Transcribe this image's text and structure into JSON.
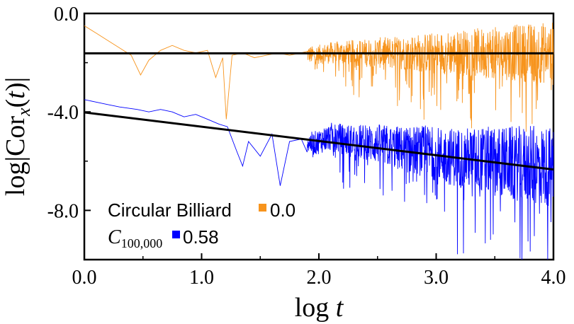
{
  "chart_data": {
    "type": "line",
    "xlabel": "log t",
    "ylabel": "log|Cor_x(t)|",
    "xlim": [
      0.0,
      4.0
    ],
    "ylim": [
      -10.0,
      0.0
    ],
    "x_ticks": [
      "0.0",
      "1.0",
      "2.0",
      "3.0",
      "4.0"
    ],
    "y_ticks": [
      "0.0",
      "-4.0",
      "-8.0"
    ],
    "legend": {
      "placement": "bottom-left",
      "entries": [
        {
          "label": "Circular Billiard",
          "value": "0.0",
          "color": "#f7941d"
        },
        {
          "label_main": "C",
          "label_sub": "100,000",
          "value": "0.58",
          "color": "#0000ff"
        }
      ]
    },
    "series": [
      {
        "name": "Circular Billiard",
        "color": "#f7941d",
        "points": [
          [
            0.0,
            -0.5
          ],
          [
            0.1,
            -0.8
          ],
          [
            0.2,
            -1.1
          ],
          [
            0.3,
            -1.4
          ],
          [
            0.4,
            -1.7
          ],
          [
            0.48,
            -2.5
          ],
          [
            0.55,
            -1.9
          ],
          [
            0.65,
            -1.5
          ],
          [
            0.75,
            -1.3
          ],
          [
            0.85,
            -1.5
          ],
          [
            0.95,
            -1.6
          ],
          [
            1.05,
            -1.5
          ],
          [
            1.12,
            -2.6
          ],
          [
            1.18,
            -1.8
          ],
          [
            1.21,
            -4.3
          ],
          [
            1.26,
            -1.7
          ],
          [
            1.35,
            -1.6
          ],
          [
            1.45,
            -1.8
          ],
          [
            1.55,
            -1.7
          ],
          [
            1.65,
            -1.6
          ],
          [
            1.75,
            -1.7
          ],
          [
            1.85,
            -1.6
          ],
          [
            1.95,
            -1.7
          ],
          [
            2.1,
            -1.6
          ],
          [
            2.3,
            -1.6
          ],
          [
            2.5,
            -1.6
          ],
          [
            2.7,
            -1.6
          ],
          [
            2.9,
            -1.6
          ],
          [
            3.1,
            -1.6
          ],
          [
            3.3,
            -1.6
          ],
          [
            3.5,
            -1.6
          ],
          [
            3.7,
            -1.6
          ],
          [
            3.9,
            -1.6
          ],
          [
            4.0,
            -1.6
          ]
        ],
        "fit": {
          "slope": 0.0,
          "intercept": -1.62
        }
      },
      {
        "name": "C100,000",
        "color": "#0000ff",
        "points": [
          [
            0.0,
            -3.5
          ],
          [
            0.1,
            -3.6
          ],
          [
            0.2,
            -3.7
          ],
          [
            0.3,
            -3.8
          ],
          [
            0.45,
            -3.9
          ],
          [
            0.55,
            -4.0
          ],
          [
            0.65,
            -3.9
          ],
          [
            0.75,
            -4.0
          ],
          [
            0.85,
            -4.2
          ],
          [
            0.95,
            -4.1
          ],
          [
            1.05,
            -4.3
          ],
          [
            1.15,
            -4.5
          ],
          [
            1.22,
            -4.6
          ],
          [
            1.3,
            -5.6
          ],
          [
            1.35,
            -6.2
          ],
          [
            1.4,
            -5.2
          ],
          [
            1.5,
            -5.8
          ],
          [
            1.6,
            -4.9
          ],
          [
            1.67,
            -7.0
          ],
          [
            1.75,
            -5.2
          ],
          [
            1.85,
            -5.1
          ],
          [
            1.95,
            -5.3
          ],
          [
            2.1,
            -5.0
          ],
          [
            2.3,
            -5.2
          ],
          [
            2.5,
            -5.3
          ],
          [
            2.7,
            -5.5
          ],
          [
            2.9,
            -5.6
          ],
          [
            3.1,
            -5.8
          ],
          [
            3.3,
            -5.9
          ],
          [
            3.5,
            -6.0
          ],
          [
            3.7,
            -6.1
          ],
          [
            3.9,
            -6.2
          ],
          [
            4.0,
            -6.3
          ]
        ],
        "fit": {
          "slope": -0.58,
          "intercept": -4.02
        }
      }
    ]
  }
}
